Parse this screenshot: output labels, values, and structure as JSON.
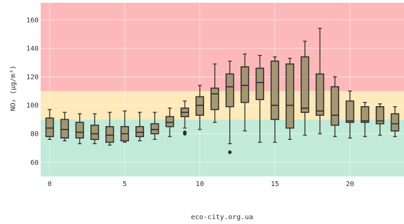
{
  "chart_data": {
    "type": "box",
    "title": "",
    "xlabel": "",
    "ylabel": "NO₂ (μg/m³)",
    "xlim": [
      -0.6,
      23.6
    ],
    "ylim": [
      50,
      172
    ],
    "x_ticks": [
      0,
      5,
      10,
      15,
      20
    ],
    "y_ticks": [
      60,
      80,
      100,
      120,
      140,
      160
    ],
    "grid": true,
    "bands": [
      {
        "from": 50,
        "to": 90,
        "color": "#c2ead8"
      },
      {
        "from": 90,
        "to": 110,
        "color": "#fde9b9"
      },
      {
        "from": 110,
        "to": 172,
        "color": "#fdb9b9"
      }
    ],
    "box_color": "#9c8f6a",
    "boxes": [
      {
        "x": 0,
        "whislo": 76,
        "q1": 78,
        "med": 84,
        "q3": 91,
        "whishi": 97,
        "fliers": []
      },
      {
        "x": 1,
        "whislo": 75,
        "q1": 77,
        "med": 83,
        "q3": 90,
        "whishi": 95,
        "fliers": []
      },
      {
        "x": 2,
        "whislo": 73,
        "q1": 77,
        "med": 81,
        "q3": 88,
        "whishi": 94,
        "fliers": []
      },
      {
        "x": 3,
        "whislo": 73,
        "q1": 76,
        "med": 80,
        "q3": 86,
        "whishi": 94,
        "fliers": []
      },
      {
        "x": 4,
        "whislo": 72,
        "q1": 74,
        "med": 79,
        "q3": 85,
        "whishi": 95,
        "fliers": []
      },
      {
        "x": 5,
        "whislo": 74,
        "q1": 75,
        "med": 80,
        "q3": 85,
        "whishi": 96,
        "fliers": []
      },
      {
        "x": 6,
        "whislo": 75,
        "q1": 78,
        "med": 81,
        "q3": 85,
        "whishi": 95,
        "fliers": []
      },
      {
        "x": 7,
        "whislo": 76,
        "q1": 80,
        "med": 83,
        "q3": 87,
        "whishi": 95,
        "fliers": []
      },
      {
        "x": 8,
        "whislo": 78,
        "q1": 85,
        "med": 88,
        "q3": 92,
        "whishi": 98,
        "fliers": []
      },
      {
        "x": 9,
        "whislo": 84,
        "q1": 92,
        "med": 95,
        "q3": 98,
        "whishi": 103,
        "fliers": [
          80,
          81
        ]
      },
      {
        "x": 10,
        "whislo": 83,
        "q1": 93,
        "med": 100,
        "q3": 106,
        "whishi": 114,
        "fliers": []
      },
      {
        "x": 11,
        "whislo": 88,
        "q1": 97,
        "med": 108,
        "q3": 112,
        "whishi": 129,
        "fliers": []
      },
      {
        "x": 12,
        "whislo": 73,
        "q1": 99,
        "med": 113,
        "q3": 122,
        "whishi": 131,
        "fliers": [
          67
        ]
      },
      {
        "x": 13,
        "whislo": 82,
        "q1": 102,
        "med": 114,
        "q3": 127,
        "whishi": 136,
        "fliers": []
      },
      {
        "x": 14,
        "whislo": 74,
        "q1": 104,
        "med": 116,
        "q3": 126,
        "whishi": 135,
        "fliers": []
      },
      {
        "x": 15,
        "whislo": 74,
        "q1": 90,
        "med": 100,
        "q3": 131,
        "whishi": 134,
        "fliers": []
      },
      {
        "x": 16,
        "whislo": 76,
        "q1": 84,
        "med": 100,
        "q3": 129,
        "whishi": 133,
        "fliers": []
      },
      {
        "x": 17,
        "whislo": 79,
        "q1": 95,
        "med": 98,
        "q3": 134,
        "whishi": 145,
        "fliers": []
      },
      {
        "x": 18,
        "whislo": 80,
        "q1": 93,
        "med": 96,
        "q3": 122,
        "whishi": 154,
        "fliers": []
      },
      {
        "x": 19,
        "whislo": 78,
        "q1": 86,
        "med": 93,
        "q3": 113,
        "whishi": 120,
        "fliers": []
      },
      {
        "x": 20,
        "whislo": 77,
        "q1": 88,
        "med": 89,
        "q3": 103,
        "whishi": 110,
        "fliers": []
      },
      {
        "x": 21,
        "whislo": 78,
        "q1": 88,
        "med": 89,
        "q3": 99,
        "whishi": 102,
        "fliers": []
      },
      {
        "x": 22,
        "whislo": 79,
        "q1": 87,
        "med": 89,
        "q3": 99,
        "whishi": 101,
        "fliers": []
      },
      {
        "x": 23,
        "whislo": 78,
        "q1": 82,
        "med": 87,
        "q3": 94,
        "whishi": 99,
        "fliers": []
      }
    ]
  },
  "footer": {
    "text": "eco-city.org.ua"
  }
}
